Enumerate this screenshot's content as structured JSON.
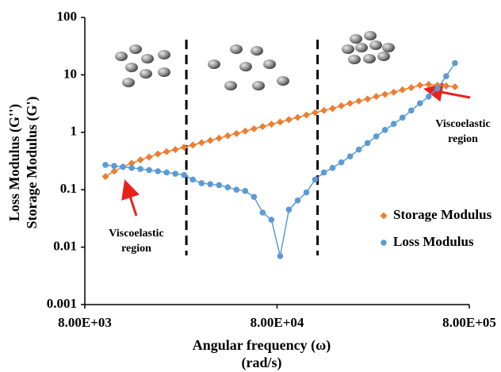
{
  "chart_data": {
    "type": "line",
    "x_label": [
      "Angular frequency (ω)",
      "(rad/s)"
    ],
    "y_label": [
      "Loss Modulus (G'')",
      "Storage Modulus (G')"
    ],
    "log_x": true,
    "log_y": true,
    "xlim": [
      8000,
      800000
    ],
    "xticks": [
      {
        "value": 8000,
        "label": "8.00E+03"
      },
      {
        "value": 80000,
        "label": "8.00E+04"
      },
      {
        "value": 800000,
        "label": "8.00E+05"
      }
    ],
    "ylim": [
      0.001,
      100
    ],
    "yticks": [
      0.001,
      0.01,
      0.1,
      1,
      10,
      100
    ],
    "legend": "right",
    "vlines": [
      27000,
      130000
    ],
    "annotations": [
      [
        "Viscoelastic",
        "region"
      ],
      [
        "Viscoelastic",
        "region"
      ]
    ],
    "x": [
      10240,
      11370,
      12630,
      14020,
      15570,
      17290,
      19190,
      21310,
      23660,
      26270,
      29160,
      32380,
      35950,
      39920,
      44320,
      49210,
      54640,
      60670,
      67360,
      74790,
      83040,
      92200,
      102400,
      113700,
      126200,
      140200,
      155600,
      172800,
      191800,
      213000,
      236500,
      262600,
      291500,
      323700,
      359400,
      399100,
      443100,
      492000,
      546300,
      606600,
      673500
    ],
    "series": [
      {
        "name": "Storage Modulus",
        "color": "#ed7d31",
        "marker": "diamond",
        "values": [
          0.17,
          0.21,
          0.25,
          0.29,
          0.33,
          0.37,
          0.42,
          0.46,
          0.5,
          0.55,
          0.6,
          0.66,
          0.72,
          0.79,
          0.87,
          0.95,
          1.05,
          1.15,
          1.26,
          1.38,
          1.51,
          1.66,
          1.82,
          2.0,
          2.2,
          2.4,
          2.6,
          2.9,
          3.2,
          3.5,
          3.8,
          4.2,
          4.6,
          5.0,
          5.5,
          6.0,
          6.6,
          6.8,
          6.6,
          6.4,
          6.2
        ]
      },
      {
        "name": "Loss Modulus",
        "color": "#5b9bd5",
        "marker": "circle",
        "values": [
          0.27,
          0.26,
          0.25,
          0.24,
          0.23,
          0.22,
          0.21,
          0.2,
          0.19,
          0.18,
          0.15,
          0.13,
          0.125,
          0.12,
          0.11,
          0.1,
          0.095,
          0.075,
          0.04,
          0.03,
          0.007,
          0.045,
          0.065,
          0.09,
          0.15,
          0.2,
          0.24,
          0.3,
          0.38,
          0.5,
          0.65,
          0.85,
          1.1,
          1.4,
          1.8,
          2.4,
          3.2,
          4.2,
          5.8,
          9.5,
          16
        ]
      }
    ]
  }
}
